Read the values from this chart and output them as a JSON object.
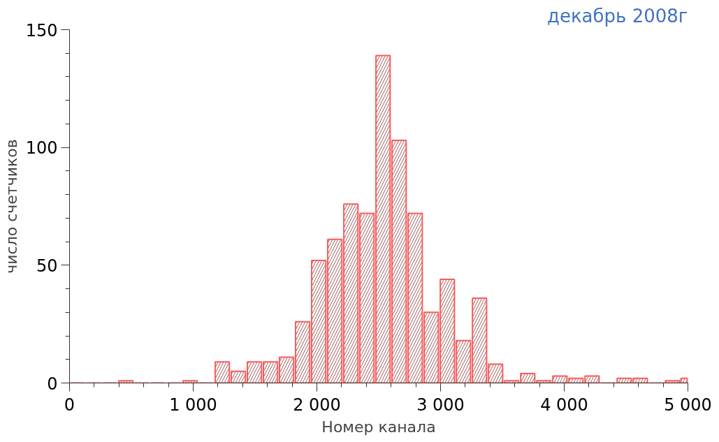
{
  "chart_data": {
    "type": "histogram",
    "title": "декабрь 2008г",
    "xlabel": "Номер канала",
    "ylabel": "число счетчиков",
    "bins": [
      0,
      130,
      260,
      390,
      520,
      650,
      780,
      910,
      1040,
      1170,
      1300,
      1430,
      1560,
      1690,
      1820,
      1950,
      2080,
      2210,
      2340,
      2470,
      2600,
      2730,
      2860,
      2990,
      3120,
      3250,
      3380,
      3510,
      3640,
      3770,
      3900,
      4030,
      4160,
      4290,
      4420,
      4550,
      4680,
      4810,
      4940,
      5000
    ],
    "values": [
      0,
      0,
      0,
      1,
      0,
      0,
      0,
      1,
      0,
      9,
      5,
      9,
      9,
      11,
      26,
      52,
      61,
      76,
      72,
      139,
      103,
      72,
      30,
      44,
      18,
      36,
      8,
      1,
      4,
      1,
      3,
      2,
      3,
      0,
      2,
      2,
      0,
      1,
      2
    ],
    "color": "#ff5a5a",
    "xlim": [
      0,
      5000
    ],
    "ylim": [
      0,
      150
    ],
    "xticks": [
      0,
      {
        "value": 1000,
        "label": "1 000"
      },
      {
        "value": 2000,
        "label": "2 000"
      },
      {
        "value": 3000,
        "label": "3 000"
      },
      {
        "value": 4000,
        "label": "4 000"
      },
      {
        "value": 5000,
        "label": "5 000"
      }
    ],
    "yticks": [
      0,
      50,
      100,
      150
    ],
    "grid": false
  }
}
